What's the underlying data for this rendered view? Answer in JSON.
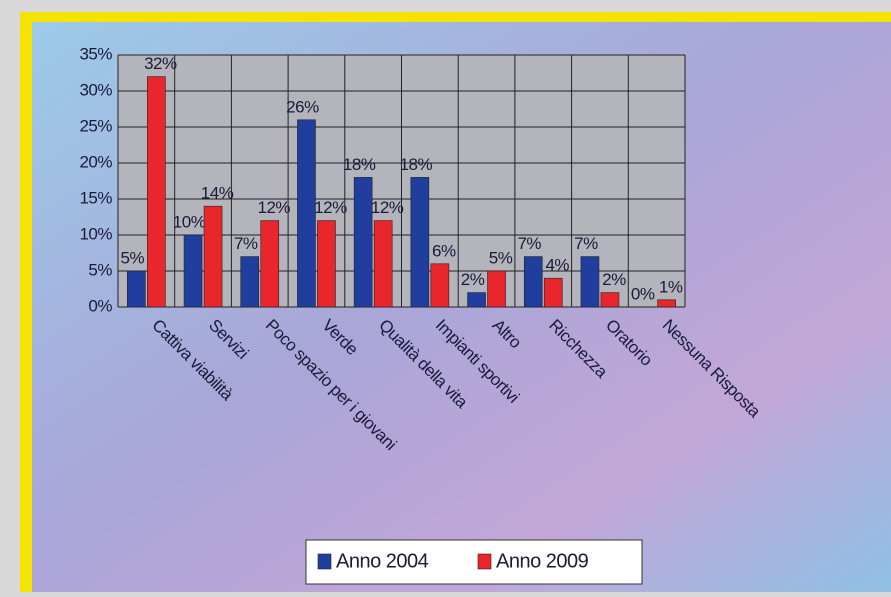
{
  "chart_data": {
    "type": "bar",
    "categories": [
      "Cattiva viabilità",
      "Servizi",
      "Poco spazio per i giovani",
      "Verde",
      "Qualità della vita",
      "Impianti sportivi",
      "Altro",
      "Ricchezza",
      "Oratorio",
      "Nessuna Risposta"
    ],
    "series": [
      {
        "name": "Anno 2004",
        "color": "#1f3e9e",
        "values": [
          5,
          10,
          7,
          26,
          18,
          18,
          2,
          7,
          7,
          0
        ],
        "value_labels": [
          "5%",
          "10%",
          "7%",
          "26%",
          "18%",
          "18%",
          "2%",
          "7%",
          "7%",
          "0%"
        ]
      },
      {
        "name": "Anno 2009",
        "color": "#e8262b",
        "values": [
          32,
          14,
          12,
          12,
          12,
          6,
          5,
          4,
          2,
          1
        ],
        "value_labels": [
          "32%",
          "14%",
          "12%",
          "12%",
          "12%",
          "6%",
          "5%",
          "4%",
          "2%",
          "1%"
        ]
      }
    ],
    "ylim": [
      0,
      35
    ],
    "yticks": [
      {
        "value": 0,
        "label": "0%"
      },
      {
        "value": 5,
        "label": "5%"
      },
      {
        "value": 10,
        "label": "10%"
      },
      {
        "value": 15,
        "label": "15%"
      },
      {
        "value": 20,
        "label": "20%"
      },
      {
        "value": 25,
        "label": "25%"
      },
      {
        "value": 30,
        "label": "30%"
      },
      {
        "value": 35,
        "label": "35%"
      }
    ],
    "grid": true,
    "legend": "bottom"
  }
}
